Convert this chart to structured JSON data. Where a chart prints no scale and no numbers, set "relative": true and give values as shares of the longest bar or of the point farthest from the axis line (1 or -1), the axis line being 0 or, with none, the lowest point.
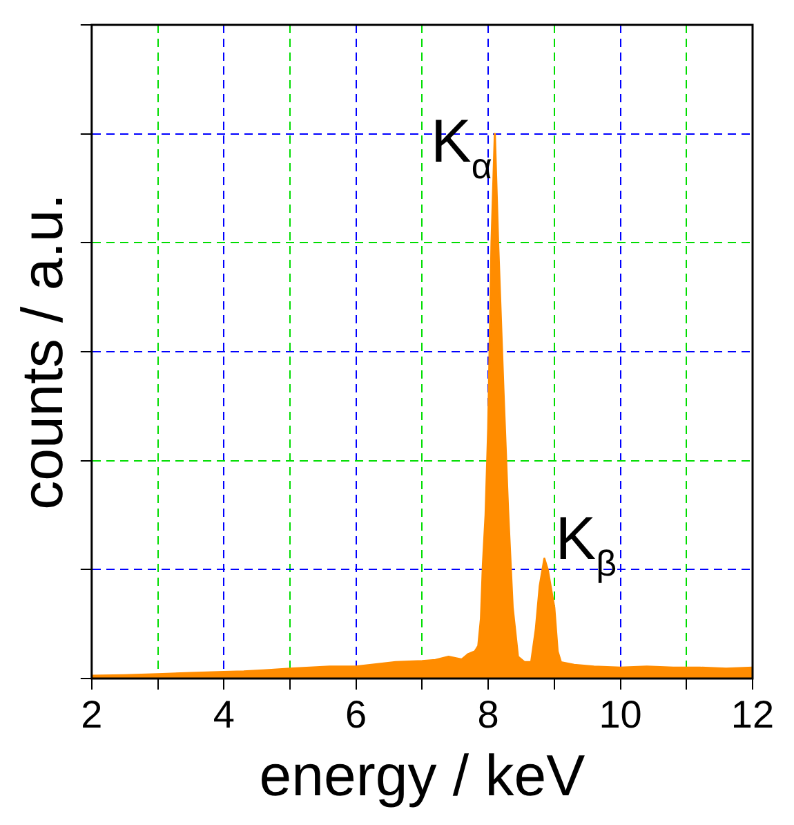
{
  "chart_data": {
    "type": "area",
    "xlabel": "energy / keV",
    "ylabel": "counts / a.u.",
    "relative": true,
    "x": [
      2,
      2.5,
      3,
      3.5,
      4,
      4.3,
      4.6,
      5,
      5.3,
      5.6,
      6,
      6.3,
      6.6,
      7,
      7.2,
      7.4,
      7.6,
      7.7,
      7.8,
      7.85,
      7.89,
      7.92,
      7.96,
      8,
      8.05,
      8.1,
      8.15,
      8.23,
      8.3,
      8.37,
      8.45,
      8.55,
      8.65,
      8.72,
      8.78,
      8.85,
      8.9,
      9,
      9.05,
      9.1,
      9.3,
      9.6,
      10,
      10.4,
      10.8,
      11.2,
      11.6,
      12
    ],
    "values": [
      0.005,
      0.006,
      0.008,
      0.01,
      0.012,
      0.013,
      0.015,
      0.018,
      0.02,
      0.022,
      0.022,
      0.026,
      0.03,
      0.032,
      0.034,
      0.04,
      0.035,
      0.045,
      0.05,
      0.06,
      0.11,
      0.21,
      0.3,
      0.46,
      0.8,
      1,
      0.8,
      0.53,
      0.31,
      0.13,
      0.04,
      0.03,
      0.03,
      0.09,
      0.17,
      0.22,
      0.2,
      0.13,
      0.05,
      0.03,
      0.025,
      0.022,
      0.02,
      0.022,
      0.02,
      0.02,
      0.018,
      0.02
    ],
    "color": "#ff8c00",
    "xlim": [
      2,
      12
    ],
    "xticks": [
      2,
      {
        "value": 3,
        "label": null
      },
      4,
      {
        "value": 5,
        "label": null
      },
      6,
      {
        "value": 7,
        "label": null
      },
      8,
      {
        "value": 9,
        "label": null
      },
      10,
      {
        "value": 11,
        "label": null
      },
      12
    ],
    "grid": true,
    "annotations": [
      {
        "text": "K$_{α}$",
        "x": 8.1,
        "y": 1
      },
      {
        "text": "K$_{β}$",
        "x": 8.85,
        "y": 0.22
      }
    ]
  }
}
